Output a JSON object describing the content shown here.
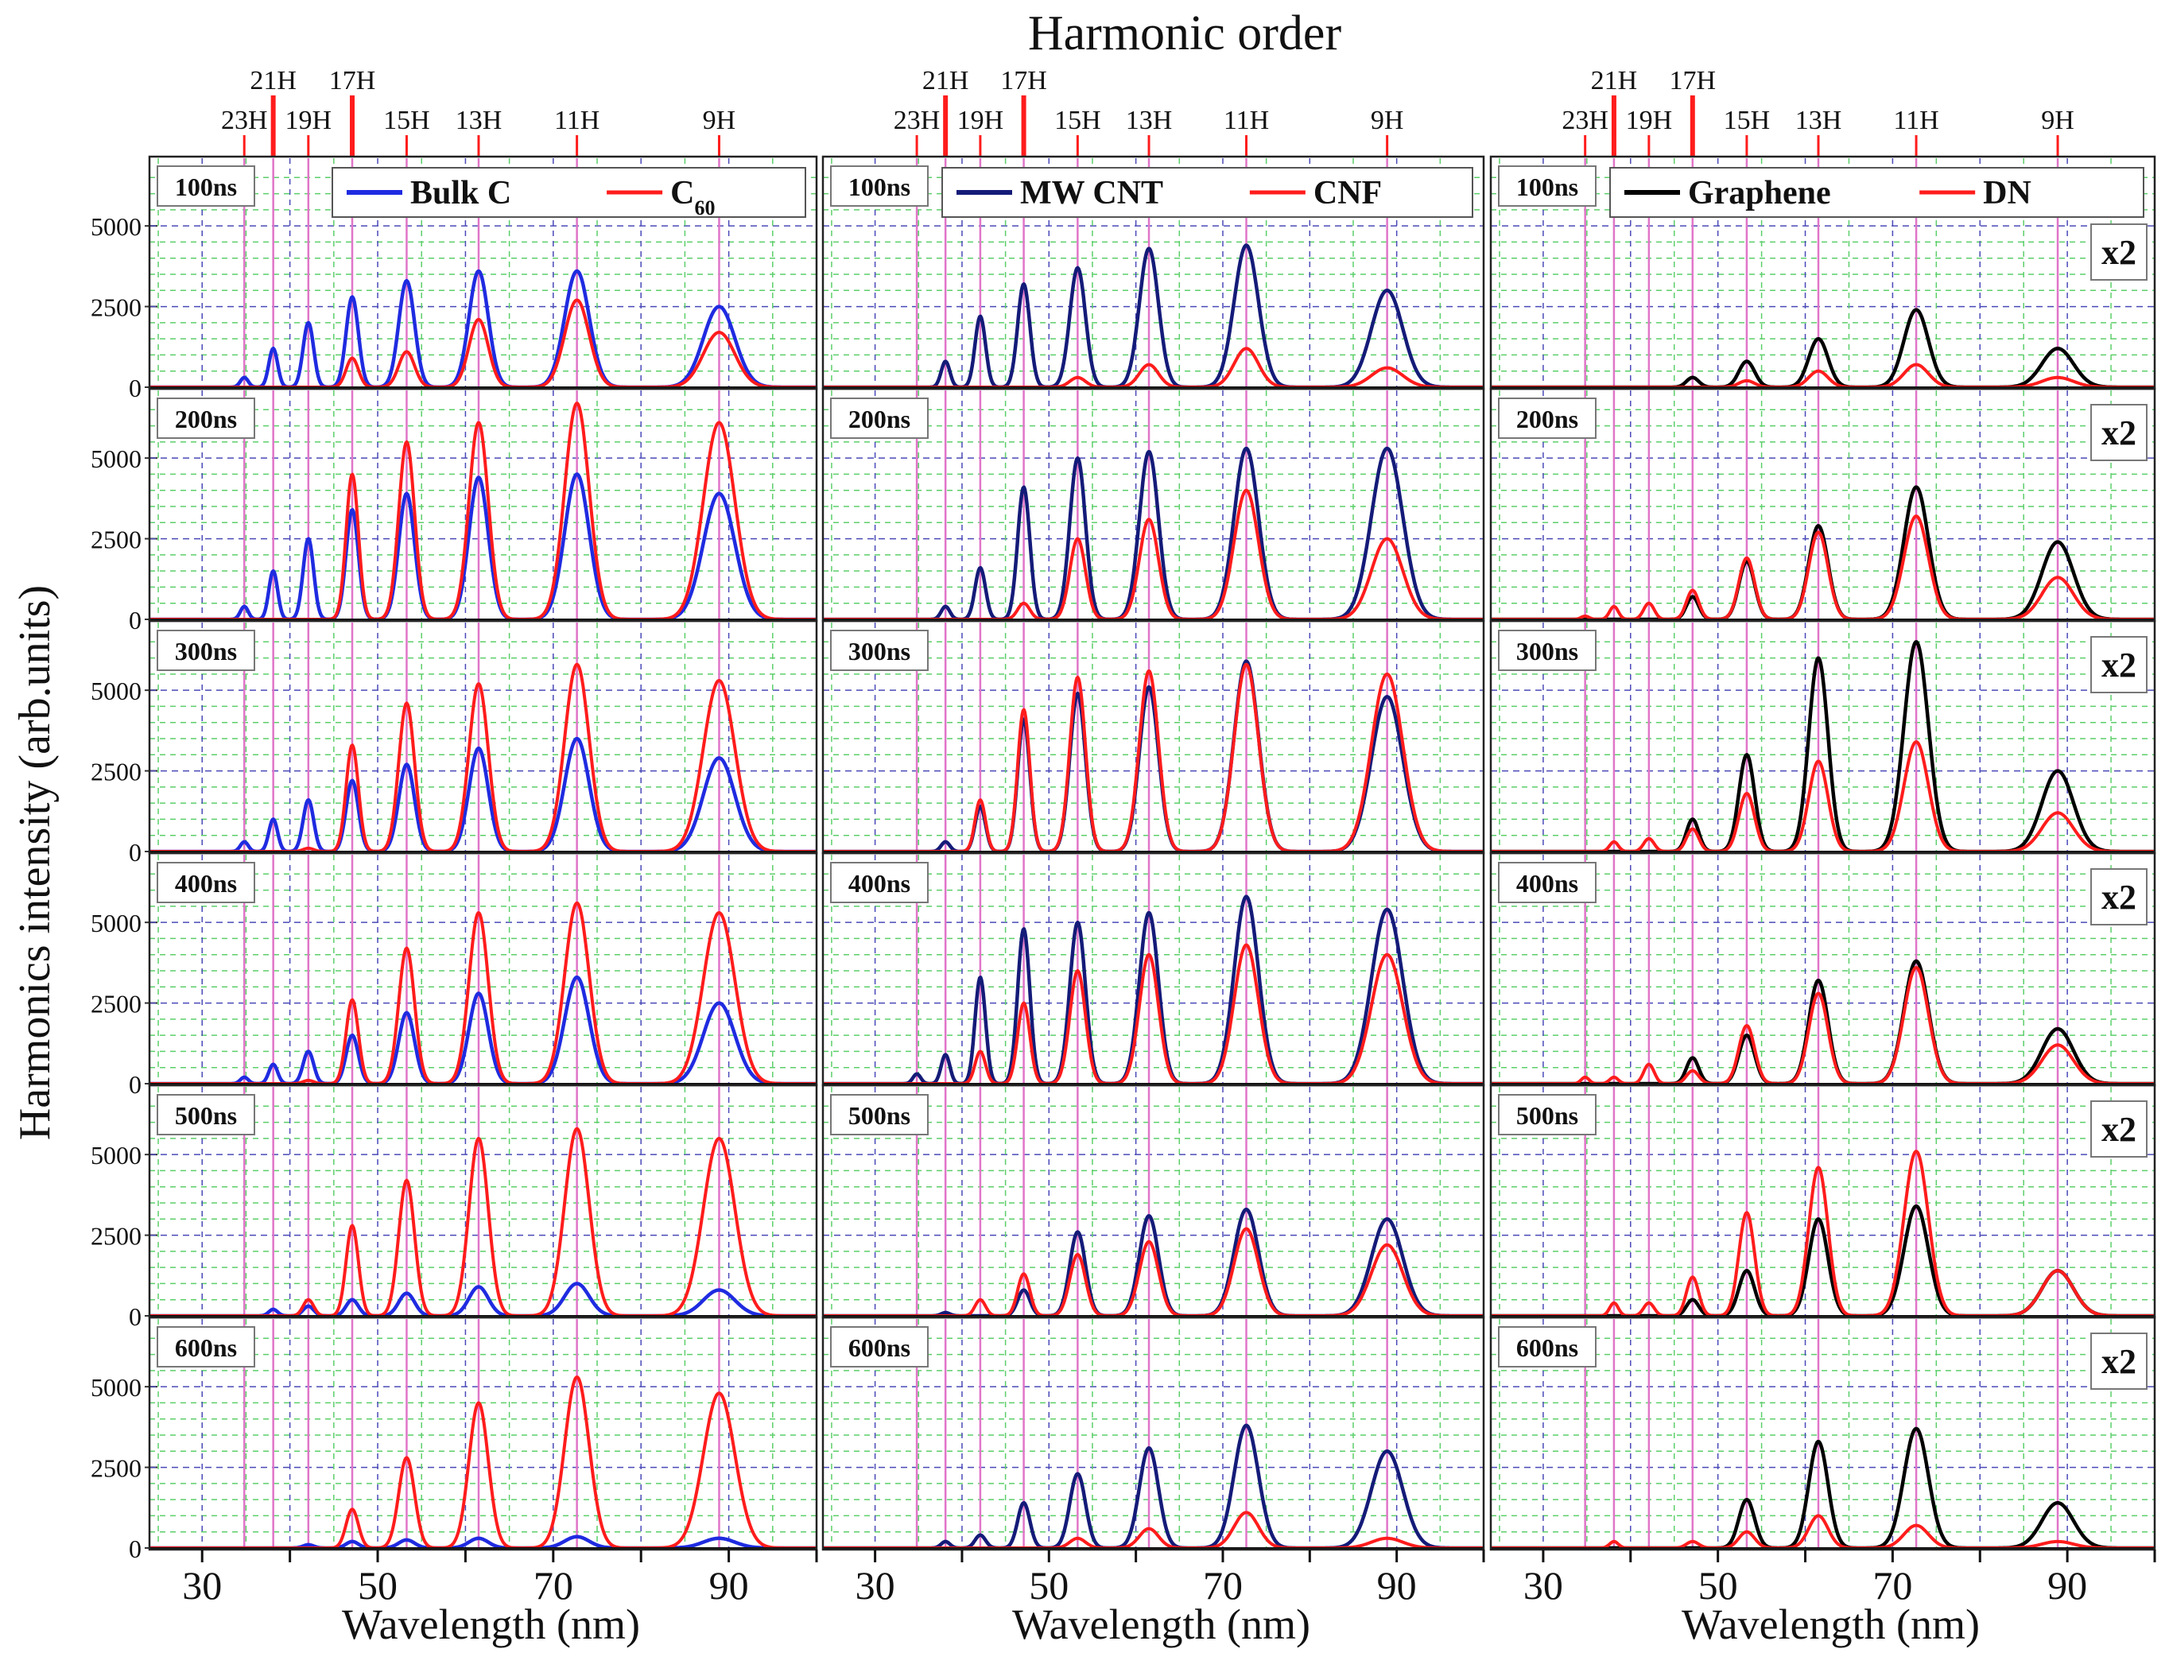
{
  "figure": {
    "top_title": "Harmonic order",
    "ylabel": "Harmonics intensity (arb.units)"
  },
  "chart_data": {
    "type": "line",
    "x_range": [
      24,
      100
    ],
    "x_ticks": [
      30,
      50,
      70,
      90
    ],
    "y_range": [
      0,
      7000
    ],
    "y_ticks": [
      0,
      2500,
      5000
    ],
    "xlabel": "Wavelength (nm)",
    "time_labels": [
      "100ns",
      "200ns",
      "300ns",
      "400ns",
      "500ns",
      "600ns"
    ],
    "harmonics": [
      {
        "label": "23H",
        "wavelength": 34.8
      },
      {
        "label": "21H",
        "wavelength": 38.1
      },
      {
        "label": "19H",
        "wavelength": 42.1
      },
      {
        "label": "17H",
        "wavelength": 47.1
      },
      {
        "label": "15H",
        "wavelength": 53.3
      },
      {
        "label": "13H",
        "wavelength": 61.5
      },
      {
        "label": "11H",
        "wavelength": 72.7
      },
      {
        "label": "9H",
        "wavelength": 88.9
      }
    ],
    "panels": [
      {
        "series": [
          {
            "name": "Bulk C",
            "subscript": "",
            "color": "#1f2be0",
            "peaks": [
              [
                300,
                1200,
                2000,
                2800,
                3300,
                3600,
                3600,
                2500
              ],
              [
                400,
                1500,
                2500,
                3400,
                3900,
                4400,
                4500,
                3900
              ],
              [
                300,
                1000,
                1600,
                2200,
                2700,
                3200,
                3500,
                2900
              ],
              [
                200,
                600,
                1000,
                1500,
                2200,
                2800,
                3300,
                2500
              ],
              [
                0,
                200,
                300,
                500,
                700,
                900,
                1000,
                800
              ],
              [
                0,
                0,
                100,
                200,
                250,
                300,
                350,
                300
              ]
            ]
          },
          {
            "name": "C",
            "subscript": "60",
            "color": "#ff1c1c",
            "peaks": [
              [
                0,
                0,
                0,
                900,
                1100,
                2100,
                2700,
                1700
              ],
              [
                0,
                0,
                0,
                4500,
                5500,
                6100,
                6700,
                6100
              ],
              [
                0,
                0,
                100,
                3300,
                4600,
                5200,
                5800,
                5300
              ],
              [
                0,
                0,
                100,
                2600,
                4200,
                5300,
                5600,
                5300
              ],
              [
                0,
                0,
                500,
                2800,
                4200,
                5500,
                5800,
                5500
              ],
              [
                0,
                0,
                0,
                1200,
                2800,
                4500,
                5300,
                4800
              ]
            ]
          }
        ]
      },
      {
        "series": [
          {
            "name": "MW CNT",
            "subscript": "",
            "color": "#141b78",
            "peaks": [
              [
                0,
                800,
                2200,
                3200,
                3700,
                4300,
                4400,
                3000
              ],
              [
                0,
                400,
                1600,
                4100,
                5000,
                5200,
                5300,
                5300
              ],
              [
                0,
                300,
                1400,
                4100,
                4900,
                5100,
                5900,
                4800
              ],
              [
                300,
                900,
                3300,
                4800,
                5000,
                5300,
                5800,
                5400
              ],
              [
                0,
                100,
                0,
                800,
                2600,
                3100,
                3300,
                3000
              ],
              [
                0,
                200,
                400,
                1400,
                2300,
                3100,
                3800,
                3000
              ]
            ]
          },
          {
            "name": "CNF",
            "subscript": "",
            "color": "#ff1c1c",
            "peaks": [
              [
                0,
                0,
                0,
                0,
                300,
                700,
                1200,
                600
              ],
              [
                0,
                0,
                0,
                500,
                2500,
                3100,
                4000,
                2500
              ],
              [
                0,
                0,
                1600,
                4400,
                5400,
                5600,
                5800,
                5500
              ],
              [
                0,
                0,
                1000,
                2500,
                3500,
                4000,
                4300,
                4000
              ],
              [
                0,
                0,
                500,
                1300,
                1900,
                2300,
                2700,
                2200
              ],
              [
                0,
                0,
                0,
                0,
                300,
                600,
                1100,
                300
              ]
            ]
          }
        ]
      },
      {
        "series": [
          {
            "name": "Graphene",
            "subscript": "",
            "color": "#000000",
            "peaks": [
              [
                0,
                0,
                0,
                300,
                800,
                1500,
                2400,
                1200
              ],
              [
                0,
                0,
                0,
                700,
                1800,
                2900,
                4100,
                2400
              ],
              [
                0,
                0,
                0,
                1000,
                3000,
                6000,
                6500,
                2500
              ],
              [
                0,
                0,
                0,
                800,
                1500,
                3200,
                3800,
                1700
              ],
              [
                0,
                0,
                0,
                500,
                1400,
                3000,
                3400,
                1400
              ],
              [
                0,
                0,
                0,
                0,
                1500,
                3300,
                3700,
                1400
              ]
            ]
          },
          {
            "name": "DN",
            "subscript": "",
            "color": "#ff1c1c",
            "peaks": [
              [
                0,
                0,
                0,
                0,
                200,
                500,
                700,
                300
              ],
              [
                100,
                400,
                500,
                900,
                1900,
                2700,
                3200,
                1300
              ],
              [
                0,
                300,
                400,
                700,
                1800,
                2800,
                3400,
                1200
              ],
              [
                200,
                200,
                600,
                400,
                1800,
                2800,
                3600,
                1200
              ],
              [
                0,
                400,
                400,
                1200,
                3200,
                4600,
                5100,
                1400
              ],
              [
                0,
                200,
                0,
                200,
                500,
                1000,
                700,
                200
              ]
            ]
          }
        ]
      }
    ],
    "panel_scale_label": "x2"
  }
}
